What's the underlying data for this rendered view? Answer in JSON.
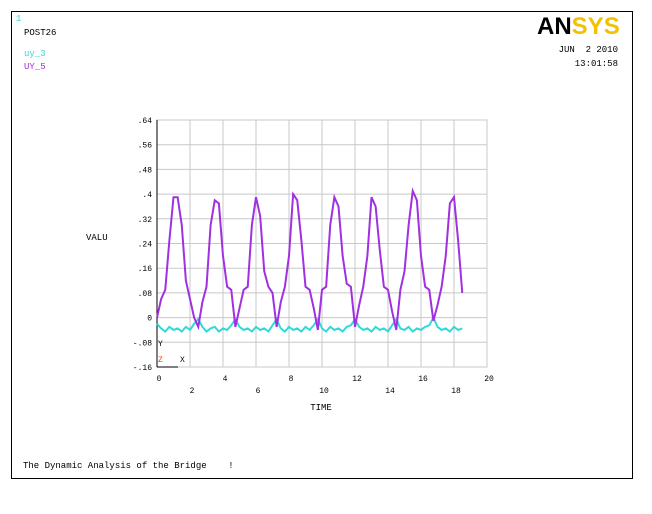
{
  "window_number": "1",
  "header": {
    "program": "POST26",
    "date": "JUN  2 2010",
    "time": "13:01:58"
  },
  "logo": [
    "AN",
    "SYS"
  ],
  "triad": [
    "Y",
    "Z",
    "X"
  ],
  "footer": "The Dynamic Analysis of the Bridge    !",
  "chart_data": {
    "type": "line",
    "xlabel": "TIME",
    "ylabel": "VALU",
    "xlim": [
      0,
      20
    ],
    "ylim": [
      -0.16,
      0.64
    ],
    "xticks": [
      0,
      2,
      4,
      6,
      8,
      10,
      12,
      14,
      16,
      18,
      20
    ],
    "yticks": [
      {
        "value": 0.64,
        "label": ".64"
      },
      {
        "value": 0.56,
        "label": ".56"
      },
      {
        "value": 0.48,
        "label": ".48"
      },
      {
        "value": 0.4,
        "label": ".4"
      },
      {
        "value": 0.32,
        "label": ".32"
      },
      {
        "value": 0.24,
        "label": ".24"
      },
      {
        "value": 0.16,
        "label": ".16"
      },
      {
        "value": 0.08,
        "label": ".08"
      },
      0,
      {
        "value": -0.08,
        "label": "-.08"
      },
      {
        "value": -0.16,
        "label": "-.16"
      }
    ],
    "grid": true,
    "x": [
      0,
      0.25,
      0.5,
      0.75,
      1,
      1.25,
      1.5,
      1.75,
      2,
      2.25,
      2.5,
      2.75,
      3,
      3.25,
      3.5,
      3.75,
      4,
      4.25,
      4.5,
      4.75,
      5,
      5.25,
      5.5,
      5.75,
      6,
      6.25,
      6.5,
      6.75,
      7,
      7.25,
      7.5,
      7.75,
      8,
      8.25,
      8.5,
      8.75,
      9,
      9.25,
      9.5,
      9.75,
      10,
      10.25,
      10.5,
      10.75,
      11,
      11.25,
      11.5,
      11.75,
      12,
      12.25,
      12.5,
      12.75,
      13,
      13.25,
      13.5,
      13.75,
      14,
      14.25,
      14.5,
      14.75,
      15,
      15.25,
      15.5,
      15.75,
      16,
      16.25,
      16.5,
      16.75,
      17,
      17.25,
      17.5,
      17.75,
      18,
      18.25,
      18.5
    ],
    "series": [
      {
        "name": "uy_3",
        "color": "#33d8d8",
        "values": [
          -0.02,
          -0.035,
          -0.045,
          -0.03,
          -0.04,
          -0.035,
          -0.045,
          -0.03,
          -0.04,
          -0.02,
          -0.005,
          -0.03,
          -0.045,
          -0.035,
          -0.03,
          -0.045,
          -0.035,
          -0.04,
          -0.025,
          -0.005,
          -0.03,
          -0.04,
          -0.035,
          -0.045,
          -0.03,
          -0.04,
          -0.035,
          -0.045,
          -0.025,
          -0.005,
          -0.035,
          -0.045,
          -0.03,
          -0.04,
          -0.035,
          -0.045,
          -0.03,
          -0.04,
          -0.025,
          -0.005,
          -0.035,
          -0.045,
          -0.03,
          -0.04,
          -0.035,
          -0.045,
          -0.03,
          -0.025,
          -0.005,
          -0.03,
          -0.04,
          -0.035,
          -0.045,
          -0.03,
          -0.04,
          -0.035,
          -0.045,
          -0.025,
          -0.005,
          -0.035,
          -0.04,
          -0.03,
          -0.045,
          -0.035,
          -0.04,
          -0.03,
          -0.025,
          0.0,
          -0.03,
          -0.04,
          -0.035,
          -0.045,
          -0.03,
          -0.04,
          -0.035
        ]
      },
      {
        "name": "UY_5",
        "color": "#a030e0",
        "values": [
          0.0,
          0.06,
          0.09,
          0.25,
          0.39,
          0.39,
          0.3,
          0.12,
          0.06,
          0.0,
          -0.03,
          0.05,
          0.1,
          0.3,
          0.38,
          0.37,
          0.2,
          0.1,
          0.09,
          -0.03,
          0.03,
          0.09,
          0.1,
          0.3,
          0.39,
          0.33,
          0.15,
          0.1,
          0.08,
          -0.03,
          0.05,
          0.1,
          0.2,
          0.4,
          0.38,
          0.25,
          0.1,
          0.09,
          0.03,
          -0.04,
          0.09,
          0.1,
          0.3,
          0.39,
          0.36,
          0.2,
          0.11,
          0.1,
          -0.03,
          0.04,
          0.1,
          0.2,
          0.39,
          0.36,
          0.22,
          0.1,
          0.09,
          0.02,
          -0.04,
          0.09,
          0.15,
          0.3,
          0.41,
          0.38,
          0.2,
          0.1,
          0.09,
          -0.01,
          0.04,
          0.1,
          0.2,
          0.37,
          0.39,
          0.25,
          0.08
        ]
      }
    ]
  }
}
